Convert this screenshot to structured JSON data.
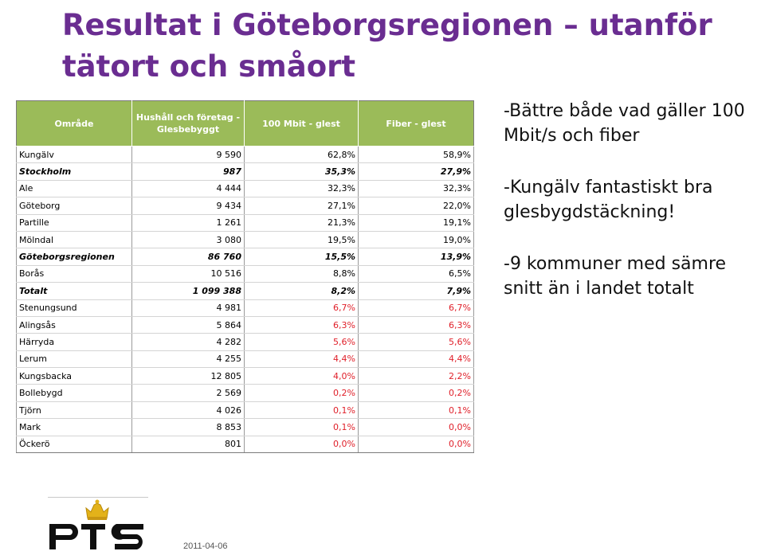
{
  "title": "Resultat i Göteborgsregionen – utanför tätort och småort",
  "table": {
    "headers": [
      "Område",
      "Hushåll och företag - Glesbebyggt",
      "100 Mbit - glest",
      "Fiber - glest"
    ],
    "rows": [
      {
        "name": "Kungälv",
        "count": "9 590",
        "mbit": "62,8%",
        "fiber": "58,9%",
        "bold": false,
        "red": false
      },
      {
        "name": "Stockholm",
        "count": "987",
        "mbit": "35,3%",
        "fiber": "27,9%",
        "bold": true,
        "red": false
      },
      {
        "name": "Ale",
        "count": "4 444",
        "mbit": "32,3%",
        "fiber": "32,3%",
        "bold": false,
        "red": false
      },
      {
        "name": "Göteborg",
        "count": "9 434",
        "mbit": "27,1%",
        "fiber": "22,0%",
        "bold": false,
        "red": false
      },
      {
        "name": "Partille",
        "count": "1 261",
        "mbit": "21,3%",
        "fiber": "19,1%",
        "bold": false,
        "red": false
      },
      {
        "name": "Mölndal",
        "count": "3 080",
        "mbit": "19,5%",
        "fiber": "19,0%",
        "bold": false,
        "red": false
      },
      {
        "name": "Göteborgsregionen",
        "count": "86 760",
        "mbit": "15,5%",
        "fiber": "13,9%",
        "bold": true,
        "red": false
      },
      {
        "name": "Borås",
        "count": "10 516",
        "mbit": "8,8%",
        "fiber": "6,5%",
        "bold": false,
        "red": false
      },
      {
        "name": "Totalt",
        "count": "1 099 388",
        "mbit": "8,2%",
        "fiber": "7,9%",
        "bold": true,
        "red": false
      },
      {
        "name": "Stenungsund",
        "count": "4 981",
        "mbit": "6,7%",
        "fiber": "6,7%",
        "bold": false,
        "red": true
      },
      {
        "name": "Alingsås",
        "count": "5 864",
        "mbit": "6,3%",
        "fiber": "6,3%",
        "bold": false,
        "red": true
      },
      {
        "name": "Härryda",
        "count": "4 282",
        "mbit": "5,6%",
        "fiber": "5,6%",
        "bold": false,
        "red": true
      },
      {
        "name": "Lerum",
        "count": "4 255",
        "mbit": "4,4%",
        "fiber": "4,4%",
        "bold": false,
        "red": true
      },
      {
        "name": "Kungsbacka",
        "count": "12 805",
        "mbit": "4,0%",
        "fiber": "2,2%",
        "bold": false,
        "red": true
      },
      {
        "name": "Bollebygd",
        "count": "2 569",
        "mbit": "0,2%",
        "fiber": "0,2%",
        "bold": false,
        "red": true
      },
      {
        "name": "Tjörn",
        "count": "4 026",
        "mbit": "0,1%",
        "fiber": "0,1%",
        "bold": false,
        "red": true
      },
      {
        "name": "Mark",
        "count": "8 853",
        "mbit": "0,1%",
        "fiber": "0,0%",
        "bold": false,
        "red": true
      },
      {
        "name": "Öckerö",
        "count": "801",
        "mbit": "0,0%",
        "fiber": "0,0%",
        "bold": false,
        "red": true
      }
    ]
  },
  "bullets": [
    "-Bättre både vad gäller 100 Mbit/s och fiber",
    "-Kungälv fantastiskt bra glesbygdstäckning!",
    "-9 kommuner med sämre snitt än i landet totalt"
  ],
  "footer": {
    "logo_text": "PTS",
    "date": "2011-04-06"
  },
  "colors": {
    "title": "#6a2d91",
    "header_bg": "#9bbb59",
    "red_value": "#e0202a",
    "crown": "#e3b21a"
  }
}
